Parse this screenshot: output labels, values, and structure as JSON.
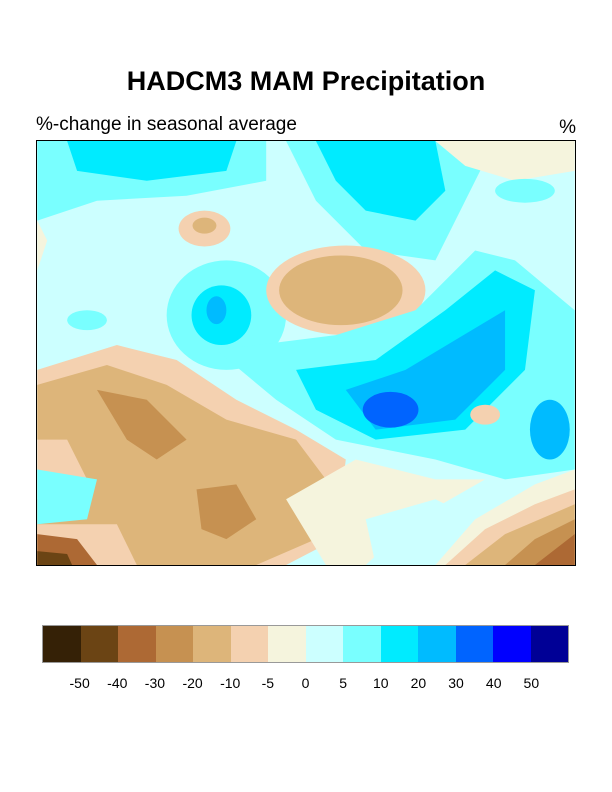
{
  "title": "HADCM3 MAM Precipitation",
  "subtitle_left": "%-change in seasonal average",
  "subtitle_right": "%",
  "colorbar": {
    "colors": [
      "#352106",
      "#6b4414",
      "#ad6934",
      "#c69151",
      "#ddb57a",
      "#f4d1b0",
      "#f5f4dd",
      "#ccffff",
      "#79ffff",
      "#00ebff",
      "#00bbff",
      "#0064ff",
      "#0000ff",
      "#000096"
    ],
    "labels": [
      "-50",
      "-40",
      "-30",
      "-20",
      "-10",
      "-5",
      "0",
      "5",
      "10",
      "20",
      "30",
      "40",
      "50"
    ]
  }
}
